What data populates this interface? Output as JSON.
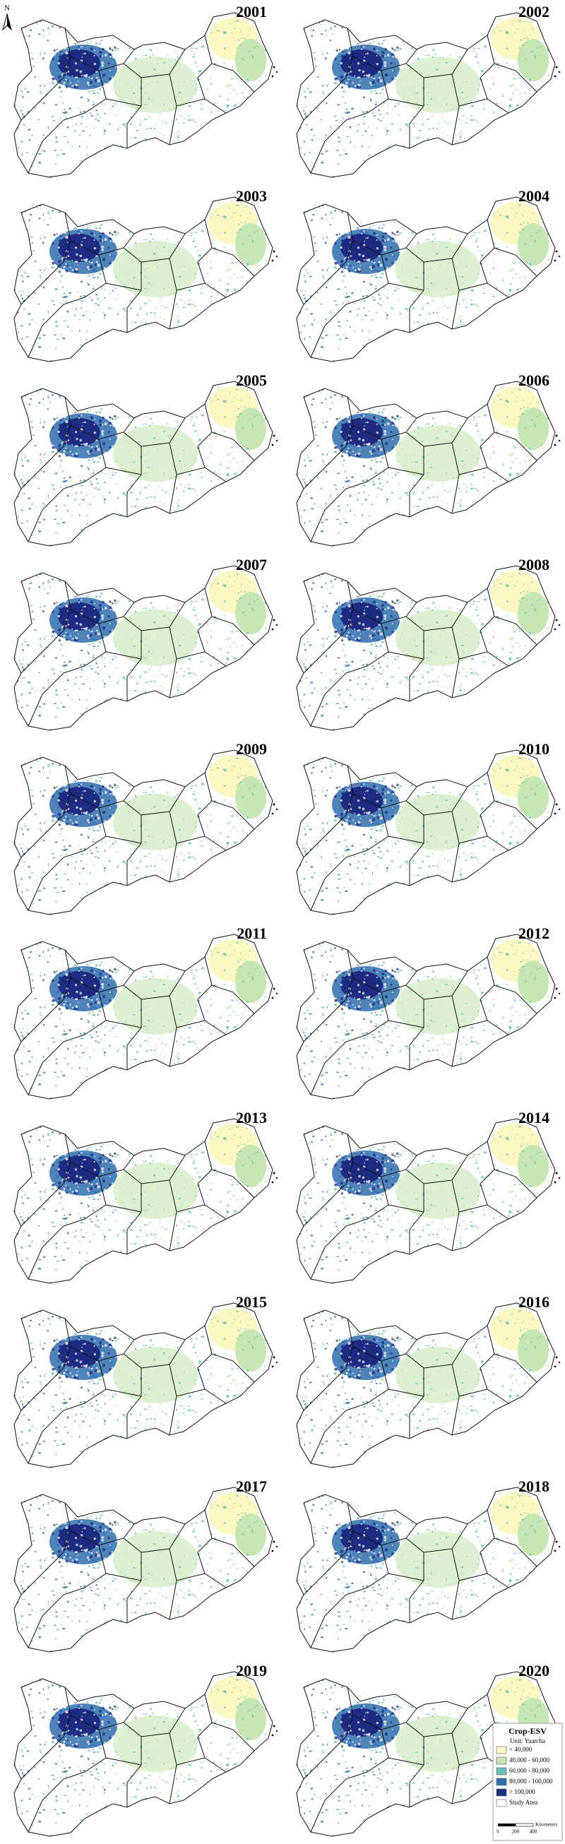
{
  "years": [
    "2001",
    "2002",
    "2003",
    "2004",
    "2005",
    "2006",
    "2007",
    "2008",
    "2009",
    "2010",
    "2011",
    "2012",
    "2013",
    "2014",
    "2015",
    "2016",
    "2017",
    "2018",
    "2019",
    "2020"
  ],
  "north": "N",
  "legend": {
    "title": "Crop-ESV",
    "unit": "Unit: Yuan/ha",
    "items": [
      {
        "label": "< 40,000",
        "color": "#fbf8c4"
      },
      {
        "label": "40,000 - 60,000",
        "color": "#c6e6b3"
      },
      {
        "label": "60,000 - 80,000",
        "color": "#67bfb6"
      },
      {
        "label": "80,000 - 100,000",
        "color": "#2f6fae"
      },
      {
        "label": "> 100,000",
        "color": "#1d2b80"
      },
      {
        "label": "Study Area",
        "color": "#ffffff"
      }
    ],
    "scale": {
      "labels": [
        "0",
        "200",
        "400"
      ],
      "unit": "Kilometers"
    }
  }
}
